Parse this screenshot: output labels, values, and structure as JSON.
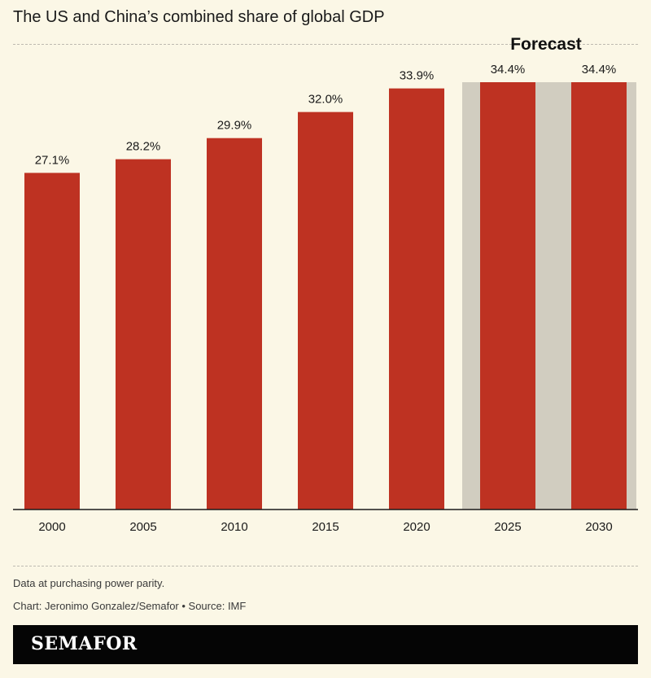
{
  "title": "The US and China’s combined share of global GDP",
  "note": "Data at purchasing power parity.",
  "credit": "Chart: Jeronimo Gonzalez/Semafor • Source: IMF",
  "brand": "SEMAFOR",
  "colors": {
    "bar": "#be3222",
    "forecast_band": "#d1cdc0",
    "background": "#fbf7e6"
  },
  "chart_data": {
    "type": "bar",
    "title": "The US and China’s combined share of global GDP",
    "categories": [
      "2000",
      "2005",
      "2010",
      "2015",
      "2020",
      "2025",
      "2030"
    ],
    "values": [
      27.1,
      28.2,
      29.9,
      32.0,
      33.9,
      34.4,
      34.4
    ],
    "value_labels": [
      "27.1%",
      "28.2%",
      "29.9%",
      "32.0%",
      "33.9%",
      "34.4%",
      "34.4%"
    ],
    "unit": "%",
    "ylim": [
      0,
      34.4
    ],
    "forecast": {
      "label": "Forecast",
      "categories": [
        "2025",
        "2030"
      ]
    },
    "grid": false,
    "legend": "none"
  }
}
